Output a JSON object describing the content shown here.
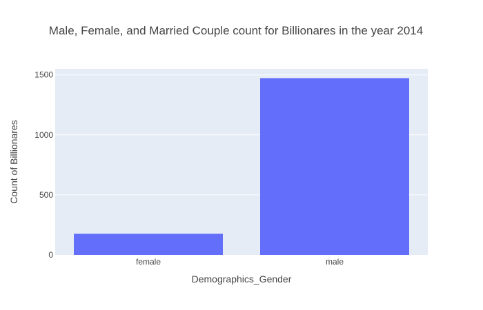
{
  "chart_data": {
    "type": "bar",
    "title": "Male, Female, and Married Couple count for Billionares in the year 2014",
    "xlabel": "Demographics_Gender",
    "ylabel": "Count of Billionares",
    "categories": [
      "female",
      "male"
    ],
    "values": [
      176,
      1473
    ],
    "ylim": [
      0,
      1550
    ],
    "yticks": [
      0,
      500,
      1000,
      1500
    ],
    "grid": true,
    "legend": "none",
    "colors": {
      "bar": "#636efa",
      "plot_background": "#e5ecf6",
      "gridline": "#ffffff",
      "text": "#444444"
    }
  }
}
